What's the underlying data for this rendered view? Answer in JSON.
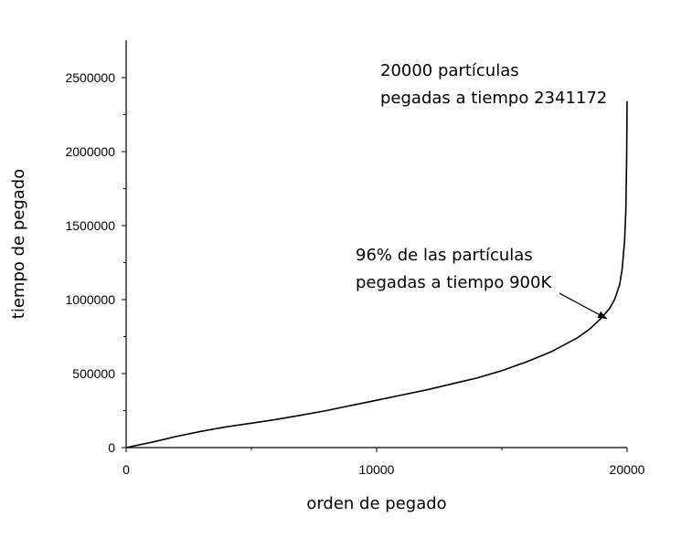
{
  "chart_data": {
    "type": "line",
    "xlabel": "orden de pegado",
    "ylabel": "tiempo de pegado",
    "xlim": [
      0,
      20000
    ],
    "ylim": [
      0,
      2600000
    ],
    "x_ticks": [
      0,
      10000,
      20000
    ],
    "y_ticks": [
      0,
      500000,
      1000000,
      1500000,
      2000000,
      2500000
    ],
    "x_tick_labels": [
      "0",
      "10000",
      "20000"
    ],
    "y_tick_labels": [
      "0",
      "500000",
      "1000000",
      "1500000",
      "2000000",
      "2500000"
    ],
    "grid": false,
    "series": [
      {
        "color": "#000000",
        "x": [
          0,
          1000,
          2000,
          3000,
          4000,
          5000,
          6000,
          7000,
          8000,
          9000,
          10000,
          11000,
          12000,
          13000,
          14000,
          15000,
          16000,
          17000,
          18000,
          18500,
          19000,
          19300,
          19500,
          19700,
          19800,
          19900,
          19950,
          19980,
          20000
        ],
        "y": [
          0,
          35000,
          75000,
          110000,
          140000,
          165000,
          190000,
          220000,
          250000,
          285000,
          320000,
          355000,
          390000,
          430000,
          470000,
          520000,
          580000,
          650000,
          740000,
          800000,
          880000,
          940000,
          1000000,
          1100000,
          1200000,
          1400000,
          1600000,
          1950000,
          2341172
        ]
      }
    ],
    "annotations": [
      {
        "lines": [
          "20000 partículas",
          "pegadas a tiempo 2341172"
        ]
      },
      {
        "lines": [
          "96% de las partículas",
          "pegadas a tiempo 900K"
        ],
        "arrow_to": [
          19200,
          870000
        ]
      }
    ]
  }
}
